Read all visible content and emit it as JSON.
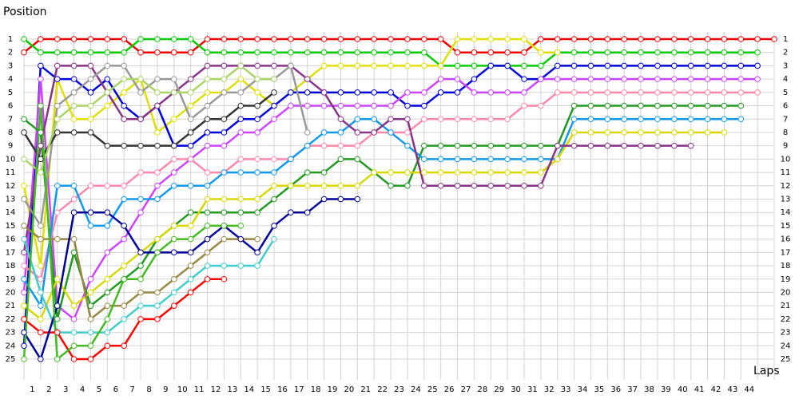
{
  "chart_data": {
    "type": "line",
    "y_label": "Position",
    "x_label": "Laps",
    "grid": true,
    "y_reversed": true,
    "xlim": [
      0,
      45
    ],
    "ylim": [
      1,
      25
    ],
    "x": [
      0,
      1,
      2,
      3,
      4,
      5,
      6,
      7,
      8,
      9,
      10,
      11,
      12,
      13,
      14,
      15,
      16,
      17,
      18,
      19,
      20,
      21,
      22,
      23,
      24,
      25,
      26,
      27,
      28,
      29,
      30,
      31,
      32,
      33,
      34,
      35,
      36,
      37,
      38,
      39,
      40,
      41,
      42,
      43,
      44,
      45
    ],
    "xticks": [
      {
        "value": 0.5,
        "label": "1"
      },
      {
        "value": 1.5,
        "label": "2"
      },
      {
        "value": 2.5,
        "label": "3"
      },
      {
        "value": 3.5,
        "label": "4"
      },
      {
        "value": 4.5,
        "label": "5"
      },
      {
        "value": 5.5,
        "label": "6"
      },
      {
        "value": 6.5,
        "label": "7"
      },
      {
        "value": 7.5,
        "label": "8"
      },
      {
        "value": 8.5,
        "label": "9"
      },
      {
        "value": 9.5,
        "label": "10"
      },
      {
        "value": 10.5,
        "label": "11"
      },
      {
        "value": 11.5,
        "label": "12"
      },
      {
        "value": 12.5,
        "label": "13"
      },
      {
        "value": 13.5,
        "label": "14"
      },
      {
        "value": 14.5,
        "label": "15"
      },
      {
        "value": 15.5,
        "label": "16"
      },
      {
        "value": 16.5,
        "label": "17"
      },
      {
        "value": 17.5,
        "label": "18"
      },
      {
        "value": 18.5,
        "label": "19"
      },
      {
        "value": 19.5,
        "label": "20"
      },
      {
        "value": 20.5,
        "label": "21"
      },
      {
        "value": 21.5,
        "label": "22"
      },
      {
        "value": 22.5,
        "label": "23"
      },
      {
        "value": 23.5,
        "label": "24"
      },
      {
        "value": 24.5,
        "label": "25"
      },
      {
        "value": 25.5,
        "label": "26"
      },
      {
        "value": 26.5,
        "label": "27"
      },
      {
        "value": 27.5,
        "label": "28"
      },
      {
        "value": 28.5,
        "label": "29"
      },
      {
        "value": 29.5,
        "label": "30"
      },
      {
        "value": 30.5,
        "label": "31"
      },
      {
        "value": 31.5,
        "label": "32"
      },
      {
        "value": 32.5,
        "label": "33"
      },
      {
        "value": 33.5,
        "label": "34"
      },
      {
        "value": 34.5,
        "label": "35"
      },
      {
        "value": 35.5,
        "label": "36"
      },
      {
        "value": 36.5,
        "label": "37"
      },
      {
        "value": 37.5,
        "label": "38"
      },
      {
        "value": 38.5,
        "label": "39"
      },
      {
        "value": 39.5,
        "label": "40"
      },
      {
        "value": 40.5,
        "label": "41"
      },
      {
        "value": 41.5,
        "label": "42"
      },
      {
        "value": 42.5,
        "label": "43"
      },
      {
        "value": 43.5,
        "label": "44"
      }
    ],
    "yticks": [
      1,
      2,
      3,
      4,
      5,
      6,
      7,
      8,
      9,
      10,
      11,
      12,
      13,
      14,
      15,
      16,
      17,
      18,
      19,
      20,
      21,
      22,
      23,
      24,
      25
    ],
    "series": [
      {
        "color": "#ee0000",
        "values": [
          2,
          1,
          1,
          1,
          1,
          1,
          1,
          2,
          2,
          2,
          2,
          1,
          1,
          1,
          1,
          1,
          1,
          1,
          1,
          1,
          1,
          1,
          1,
          1,
          1,
          1,
          2,
          2,
          2,
          2,
          2,
          1,
          1,
          1,
          1,
          1,
          1,
          1,
          1,
          1,
          1,
          1,
          1,
          1,
          1,
          1
        ]
      },
      {
        "color": "#00cc00",
        "values": [
          1,
          2,
          2,
          2,
          2,
          2,
          2,
          1,
          1,
          1,
          1,
          2,
          2,
          2,
          2,
          2,
          2,
          2,
          2,
          2,
          2,
          2,
          2,
          2,
          2,
          3,
          3,
          3,
          3,
          3,
          3,
          3,
          2,
          2,
          2,
          2,
          2,
          2,
          2,
          2,
          2,
          2,
          2,
          2,
          2,
          null
        ]
      },
      {
        "color": "#e0e000",
        "values": [
          12,
          18,
          4,
          7,
          7,
          6,
          5,
          4,
          8,
          7,
          6,
          5,
          5,
          4,
          5,
          6,
          5,
          4,
          3,
          3,
          3,
          3,
          3,
          3,
          3,
          3,
          1,
          1,
          1,
          1,
          1,
          2,
          2,
          null,
          null,
          null,
          null,
          null,
          null,
          null,
          null,
          null,
          null,
          null,
          null,
          null
        ]
      },
      {
        "color": "#0000dd",
        "values": [
          24,
          3,
          4,
          4,
          5,
          4,
          6,
          7,
          6,
          9,
          9,
          8,
          8,
          7,
          7,
          6,
          5,
          5,
          5,
          5,
          5,
          5,
          5,
          6,
          6,
          5,
          5,
          4,
          3,
          3,
          4,
          4,
          3,
          3,
          3,
          3,
          3,
          3,
          3,
          3,
          3,
          3,
          3,
          3,
          3,
          null
        ]
      },
      {
        "color": "#cc44ff",
        "values": [
          20,
          4,
          21,
          22,
          19,
          17,
          16,
          14,
          12,
          11,
          10,
          9,
          9,
          8,
          8,
          7,
          6,
          6,
          6,
          6,
          6,
          6,
          6,
          5,
          5,
          4,
          4,
          5,
          5,
          5,
          5,
          4,
          4,
          4,
          4,
          4,
          4,
          4,
          4,
          4,
          4,
          4,
          4,
          4,
          4,
          null
        ]
      },
      {
        "color": "#ff88aa",
        "values": [
          18,
          19,
          14,
          13,
          12,
          12,
          12,
          11,
          11,
          10,
          10,
          11,
          11,
          10,
          10,
          10,
          10,
          9,
          9,
          9,
          9,
          8,
          8,
          8,
          7,
          7,
          7,
          7,
          7,
          7,
          6,
          6,
          5,
          5,
          5,
          5,
          5,
          5,
          5,
          5,
          5,
          5,
          5,
          5,
          5,
          null
        ]
      },
      {
        "color": "#229922",
        "values": [
          7,
          8,
          22,
          17,
          21,
          20,
          19,
          18,
          16,
          15,
          14,
          14,
          14,
          14,
          14,
          13,
          12,
          11,
          11,
          10,
          10,
          11,
          12,
          12,
          9,
          9,
          9,
          9,
          9,
          9,
          9,
          9,
          9,
          6,
          6,
          6,
          6,
          6,
          6,
          6,
          6,
          6,
          6,
          6,
          null,
          null
        ]
      },
      {
        "color": "#1199ee",
        "values": [
          19,
          21,
          12,
          12,
          15,
          15,
          13,
          13,
          13,
          12,
          12,
          12,
          11,
          11,
          11,
          11,
          10,
          9,
          8,
          8,
          7,
          7,
          8,
          9,
          10,
          10,
          10,
          10,
          10,
          10,
          10,
          10,
          10,
          7,
          7,
          7,
          7,
          7,
          7,
          7,
          7,
          7,
          7,
          7,
          null,
          null
        ]
      },
      {
        "color": "#d8d800",
        "values": [
          21,
          22,
          19,
          21,
          20,
          19,
          18,
          17,
          16,
          15,
          15,
          13,
          13,
          13,
          13,
          12,
          12,
          12,
          12,
          12,
          12,
          11,
          11,
          11,
          11,
          11,
          11,
          11,
          11,
          11,
          11,
          11,
          10,
          8,
          8,
          8,
          8,
          8,
          8,
          8,
          8,
          8,
          8,
          null,
          null,
          null
        ]
      },
      {
        "color": "#883388",
        "values": [
          17,
          9,
          3,
          3,
          3,
          5,
          7,
          7,
          6,
          5,
          4,
          3,
          3,
          3,
          3,
          3,
          3,
          4,
          5,
          7,
          8,
          8,
          7,
          7,
          12,
          12,
          12,
          12,
          12,
          12,
          12,
          12,
          9,
          9,
          9,
          9,
          9,
          9,
          9,
          9,
          9,
          null,
          null,
          null,
          null,
          null
        ]
      },
      {
        "color": "#999999",
        "values": [
          13,
          15,
          6,
          5,
          4,
          3,
          3,
          5,
          4,
          4,
          7,
          6,
          5,
          5,
          4,
          4,
          3,
          8,
          null,
          null,
          null,
          null,
          null,
          null,
          null,
          null,
          null,
          null,
          null,
          null,
          null,
          null,
          null,
          null,
          null,
          null,
          null,
          null,
          null,
          null,
          null,
          null,
          null,
          null,
          null,
          null
        ]
      },
      {
        "color": "#333333",
        "values": [
          8,
          10,
          8,
          8,
          8,
          9,
          9,
          9,
          9,
          9,
          8,
          7,
          7,
          6,
          6,
          5,
          null,
          null,
          null,
          null,
          null,
          null,
          null,
          null,
          null,
          null,
          null,
          null,
          null,
          null,
          null,
          null,
          null,
          null,
          null,
          null,
          null,
          null,
          null,
          null,
          null,
          null,
          null,
          null,
          null,
          null
        ]
      },
      {
        "color": "#aad466",
        "values": [
          10,
          11,
          7,
          6,
          6,
          5,
          4,
          4,
          5,
          5,
          5,
          4,
          4,
          3,
          4,
          4,
          null,
          null,
          null,
          null,
          null,
          null,
          null,
          null,
          null,
          null,
          null,
          null,
          null,
          null,
          null,
          null,
          null,
          null,
          null,
          null,
          null,
          null,
          null,
          null,
          null,
          null,
          null,
          null,
          null,
          null
        ]
      },
      {
        "color": "#44cccc",
        "values": [
          16,
          20,
          23,
          23,
          23,
          23,
          22,
          21,
          21,
          20,
          19,
          18,
          18,
          18,
          18,
          16,
          null,
          null,
          null,
          null,
          null,
          null,
          null,
          null,
          null,
          null,
          null,
          null,
          null,
          null,
          null,
          null,
          null,
          null,
          null,
          null,
          null,
          null,
          null,
          null,
          null,
          null,
          null,
          null,
          null,
          null
        ]
      },
      {
        "color": "#998844",
        "values": [
          15,
          16,
          16,
          16,
          22,
          21,
          21,
          20,
          20,
          19,
          18,
          17,
          16,
          16,
          16,
          null,
          null,
          null,
          null,
          null,
          null,
          null,
          null,
          null,
          null,
          null,
          null,
          null,
          null,
          null,
          null,
          null,
          null,
          null,
          null,
          null,
          null,
          null,
          null,
          null,
          null,
          null,
          null,
          null,
          null,
          null
        ]
      },
      {
        "color": "#ff0000",
        "values": [
          22,
          23,
          23,
          25,
          25,
          24,
          24,
          22,
          22,
          21,
          20,
          19,
          19,
          null,
          null,
          null,
          null,
          null,
          null,
          null,
          null,
          null,
          null,
          null,
          null,
          null,
          null,
          null,
          null,
          null,
          null,
          null,
          null,
          null,
          null,
          null,
          null,
          null,
          null,
          null,
          null,
          null,
          null,
          null,
          null,
          null
        ]
      },
      {
        "color": "#000099",
        "values": [
          23,
          25,
          21,
          14,
          14,
          14,
          15,
          17,
          17,
          17,
          17,
          16,
          15,
          16,
          17,
          15,
          14,
          14,
          13,
          13,
          13,
          null,
          null,
          null,
          null,
          null,
          null,
          null,
          null,
          null,
          null,
          null,
          null,
          null,
          null,
          null,
          null,
          null,
          null,
          null,
          null,
          null,
          null,
          null,
          null,
          null
        ]
      },
      {
        "color": "#44bb22",
        "values": [
          25,
          6,
          25,
          24,
          24,
          22,
          19,
          19,
          17,
          16,
          16,
          15,
          15,
          15,
          null,
          null,
          null,
          null,
          null,
          null,
          null,
          null,
          null,
          null,
          null,
          null,
          null,
          null,
          null,
          null,
          null,
          null,
          null,
          null,
          null,
          null,
          null,
          null,
          null,
          null,
          null,
          null,
          null,
          null,
          null,
          null
        ]
      }
    ]
  }
}
